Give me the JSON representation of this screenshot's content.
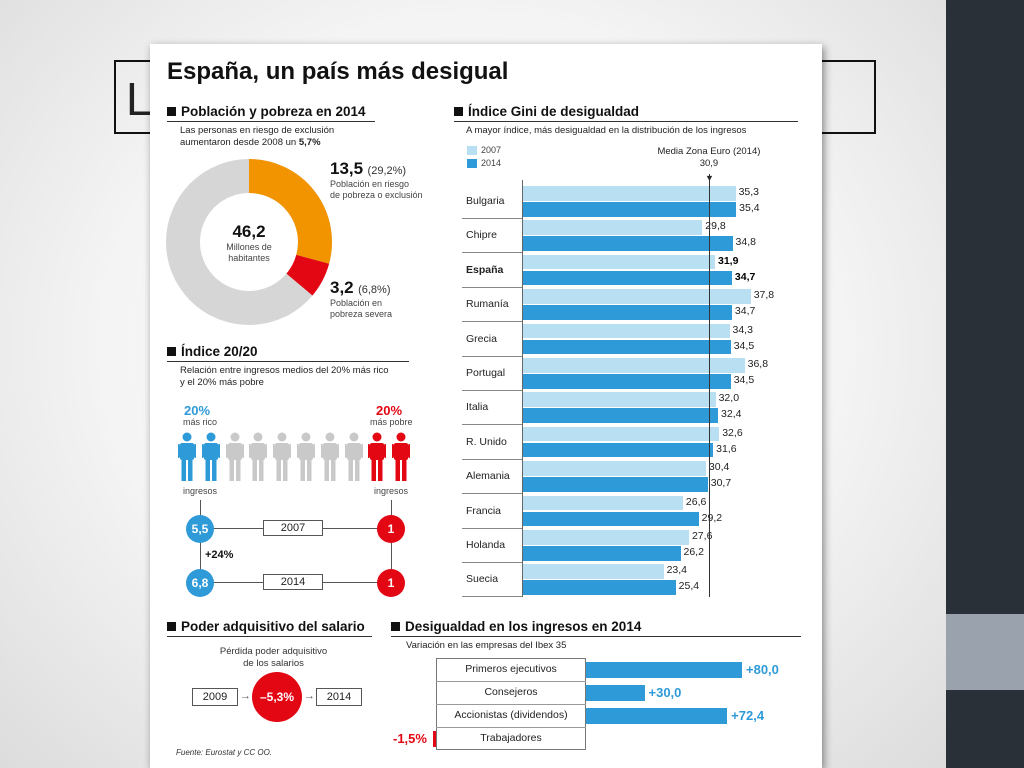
{
  "slide": {
    "title_fragment": "L",
    "colors": {
      "dark_bar": "#2a3038",
      "accent_bar": "#9aa3ad"
    }
  },
  "infographic": {
    "title": "España, un país más desigual",
    "source": "Fuente: Eurostat y CC OO."
  },
  "poblacion": {
    "heading": "Población y pobreza en 2014",
    "subtitle_line1": "Las personas en riesgo de exclusión",
    "subtitle_line2": "aumentaron desde 2008 un",
    "subtitle_pct": "5,7%",
    "center_value": "46,2",
    "center_label_line1": "Millones de",
    "center_label_line2": "habitantes",
    "risk_value": "13,5",
    "risk_pct": "(29,2%)",
    "risk_label_line1": "Población en riesgo",
    "risk_label_line2": "de pobreza o exclusión",
    "severe_value": "3,2",
    "severe_pct": "(6,8%)",
    "severe_label_line1": "Población en",
    "severe_label_line2": "pobreza severa",
    "colors": {
      "risk": "#f29400",
      "severe": "#e30613",
      "rest": "#d6d6d6"
    }
  },
  "indice2020": {
    "heading": "Índice 20/20",
    "subtitle_line1": "Relación entre ingresos medios del 20% más rico",
    "subtitle_line2": "y el 20% más pobre",
    "rich_pct": "20%",
    "rich_label": "más rico",
    "poor_pct": "20%",
    "poor_label": "más pobre",
    "ingresos_left": "ingresos",
    "ingresos_right": "ingresos",
    "year_a": "2007",
    "year_b": "2014",
    "rich_a": "5,5",
    "rich_b": "6,8",
    "poor_a": "1",
    "poor_b": "1",
    "change": "+24%",
    "colors": {
      "rich": "#2e9ad8",
      "middle": "#c9c9c9",
      "poor": "#e30613"
    }
  },
  "poder": {
    "heading": "Poder adquisitivo del salario",
    "label_line1": "Pérdida poder adquisitivo",
    "label_line2": "de los salarios",
    "year_from": "2009",
    "value": "–5,3%",
    "year_to": "2014"
  },
  "chart_data": [
    {
      "type": "bar",
      "title": "Índice Gini de desigualdad",
      "subtitle": "A mayor índice, más desigualdad en la distribución de los ingresos",
      "reference_line": {
        "label_line1": "Media Zona Euro (2014)",
        "label_line2": "30,9",
        "value": 30.9
      },
      "categories": [
        "Bulgaria",
        "Chipre",
        "España",
        "Rumanía",
        "Grecia",
        "Portugal",
        "Italia",
        "R. Unido",
        "Alemania",
        "Francia",
        "Holanda",
        "Suecia"
      ],
      "highlight": "España",
      "series": [
        {
          "name": "2007",
          "color": "#b9dff3",
          "values": [
            35.3,
            29.8,
            31.9,
            37.8,
            34.3,
            36.8,
            32.0,
            32.6,
            30.4,
            26.6,
            27.6,
            23.4
          ],
          "labels": [
            "35,3",
            "29,8",
            "31,9",
            "37,8",
            "34,3",
            "36,8",
            "32,0",
            "32,6",
            "30,4",
            "26,6",
            "27,6",
            "23,4"
          ]
        },
        {
          "name": "2014",
          "color": "#2e9ad8",
          "values": [
            35.4,
            34.8,
            34.7,
            34.7,
            34.5,
            34.5,
            32.4,
            31.6,
            30.7,
            29.2,
            26.2,
            25.4
          ],
          "labels": [
            "35,4",
            "34,8",
            "34,7",
            "34,7",
            "34,5",
            "34,5",
            "32,4",
            "31,6",
            "30,7",
            "29,2",
            "26,2",
            "25,4"
          ]
        }
      ],
      "xlim": [
        0,
        38
      ]
    },
    {
      "type": "bar",
      "title": "Desigualdad en los ingresos en 2014",
      "subtitle": "Variación en las empresas del Ibex 35",
      "categories": [
        "Primeros ejecutivos",
        "Consejeros",
        "Accionistas (dividendos)",
        "Trabajadores"
      ],
      "values": [
        80.0,
        30.0,
        72.4,
        -1.5
      ],
      "labels": [
        "+80,0",
        "+30,0",
        "+72,4",
        "-1,5%"
      ],
      "colors": {
        "positive": "#2e9ad8",
        "negative": "#e30613"
      }
    }
  ]
}
